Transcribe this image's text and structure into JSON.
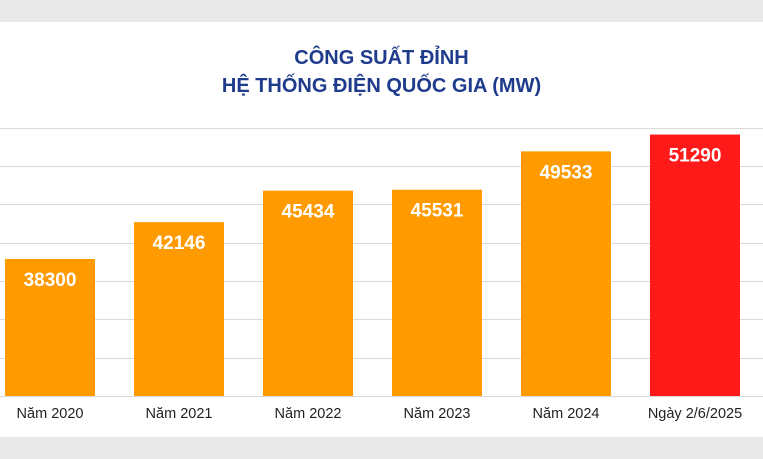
{
  "chart_data": {
    "type": "bar",
    "title": "CÔNG SUẤT ĐỈNH",
    "subtitle": "HỆ THỐNG ĐIỆN QUỐC GIA (MW)",
    "categories": [
      "Năm 2020",
      "Năm 2021",
      "Năm 2022",
      "Năm 2023",
      "Năm 2024",
      "Ngày 2/6/2025"
    ],
    "values": [
      38300,
      42146,
      45434,
      45531,
      49533,
      51290
    ],
    "value_labels": [
      "38300",
      "42146",
      "45434",
      "45531",
      "49533",
      "51290"
    ],
    "ylim": [
      24000,
      52600
    ],
    "grid": true,
    "colors": {
      "default_bar": "#ff9a00",
      "highlight_bar": "#ff1a1a",
      "title": "#1f3c8c"
    },
    "highlight_index": 5
  }
}
